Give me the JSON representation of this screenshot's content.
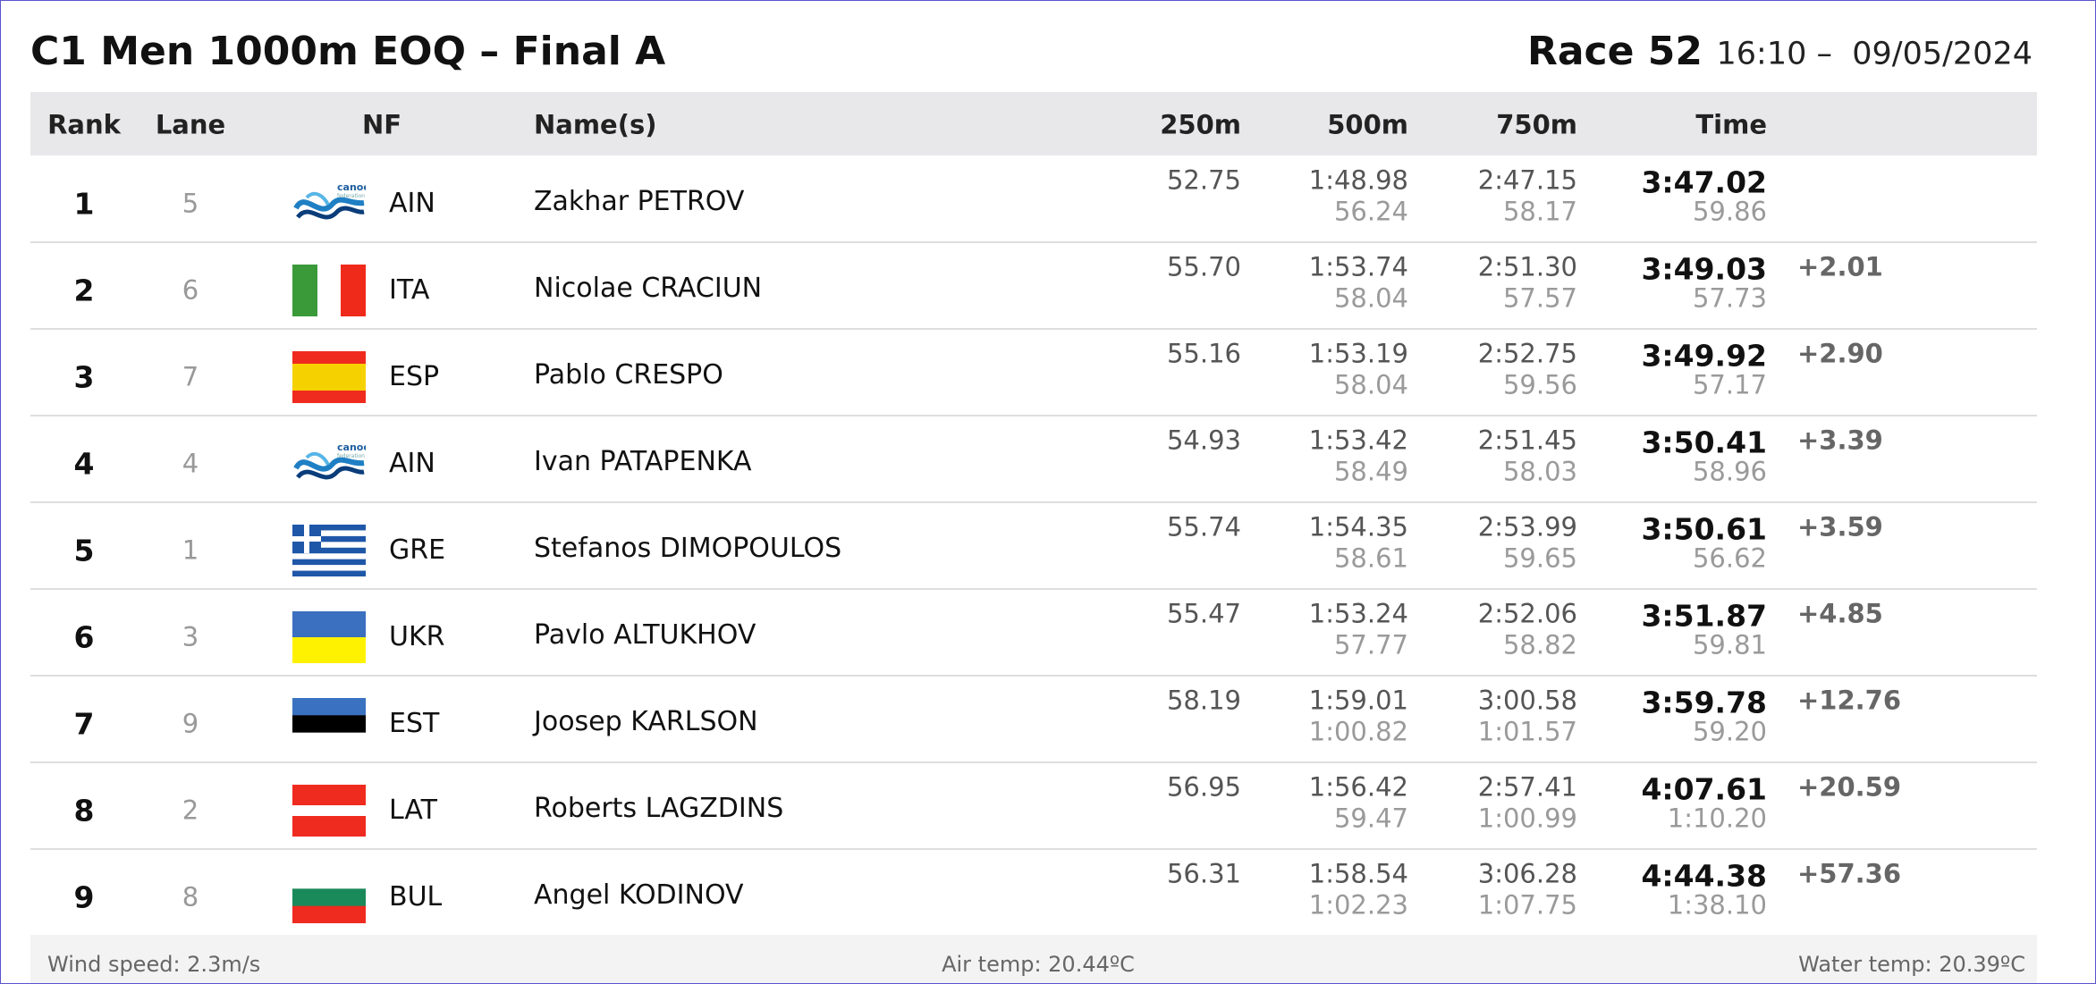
{
  "header": {
    "title": "C1 Men 1000m EOQ – Final A",
    "race": "Race 52",
    "datetime": "16:10 –  09/05/2024"
  },
  "table": {
    "columns": [
      "Rank",
      "Lane",
      "NF",
      "Name(s)",
      "250m",
      "500m",
      "750m",
      "Time"
    ],
    "rows": [
      {
        "rank": 1,
        "lane": 5,
        "nf": "AIN",
        "name": "Zakhar PETROV",
        "split_250": "52.75",
        "split_500": "1:48.98",
        "lap_500": "56.24",
        "split_750": "2:47.15",
        "lap_750": "58.17",
        "time": "3:47.02",
        "lap_1000": "59.86"
      },
      {
        "rank": 2,
        "lane": 6,
        "nf": "ITA",
        "name": "Nicolae CRACIUN",
        "split_250": "55.70",
        "split_500": "1:53.74",
        "lap_500": "58.04",
        "split_750": "2:51.30",
        "lap_750": "57.57",
        "time": "3:49.03",
        "lap_1000": "57.73",
        "behind": "+2.01"
      },
      {
        "rank": 3,
        "lane": 7,
        "nf": "ESP",
        "name": "Pablo CRESPO",
        "split_250": "55.16",
        "split_500": "1:53.19",
        "lap_500": "58.04",
        "split_750": "2:52.75",
        "lap_750": "59.56",
        "time": "3:49.92",
        "lap_1000": "57.17",
        "behind": "+2.90"
      },
      {
        "rank": 4,
        "lane": 4,
        "nf": "AIN",
        "name": "Ivan PATAPENKA",
        "split_250": "54.93",
        "split_500": "1:53.42",
        "lap_500": "58.49",
        "split_750": "2:51.45",
        "lap_750": "58.03",
        "time": "3:50.41",
        "lap_1000": "58.96",
        "behind": "+3.39"
      },
      {
        "rank": 5,
        "lane": 1,
        "nf": "GRE",
        "name": "Stefanos DIMOPOULOS",
        "split_250": "55.74",
        "split_500": "1:54.35",
        "lap_500": "58.61",
        "split_750": "2:53.99",
        "lap_750": "59.65",
        "time": "3:50.61",
        "lap_1000": "56.62",
        "behind": "+3.59"
      },
      {
        "rank": 6,
        "lane": 3,
        "nf": "UKR",
        "name": "Pavlo ALTUKHOV",
        "split_250": "55.47",
        "split_500": "1:53.24",
        "lap_500": "57.77",
        "split_750": "2:52.06",
        "lap_750": "58.82",
        "time": "3:51.87",
        "lap_1000": "59.81",
        "behind": "+4.85"
      },
      {
        "rank": 7,
        "lane": 9,
        "nf": "EST",
        "name": "Joosep KARLSON",
        "split_250": "58.19",
        "split_500": "1:59.01",
        "lap_500": "1:00.82",
        "split_750": "3:00.58",
        "lap_750": "1:01.57",
        "time": "3:59.78",
        "lap_1000": "59.20",
        "behind": "+12.76"
      },
      {
        "rank": 8,
        "lane": 2,
        "nf": "LAT",
        "name": "Roberts LAGZDINS",
        "split_250": "56.95",
        "split_500": "1:56.42",
        "lap_500": "59.47",
        "split_750": "2:57.41",
        "lap_750": "1:00.99",
        "time": "4:07.61",
        "lap_1000": "1:10.20",
        "behind": "+20.59"
      },
      {
        "rank": 9,
        "lane": 8,
        "nf": "BUL",
        "name": "Angel KODINOV",
        "split_250": "56.31",
        "split_500": "1:58.54",
        "lap_500": "1:02.23",
        "split_750": "3:06.28",
        "lap_750": "1:07.75",
        "time": "4:44.38",
        "lap_1000": "1:38.10",
        "behind": "+57.36"
      }
    ]
  },
  "footer": {
    "wind": "Wind speed: 2.3m/s",
    "air": "Air temp: 20.44ºC",
    "water": "Water temp: 20.39ºC"
  }
}
